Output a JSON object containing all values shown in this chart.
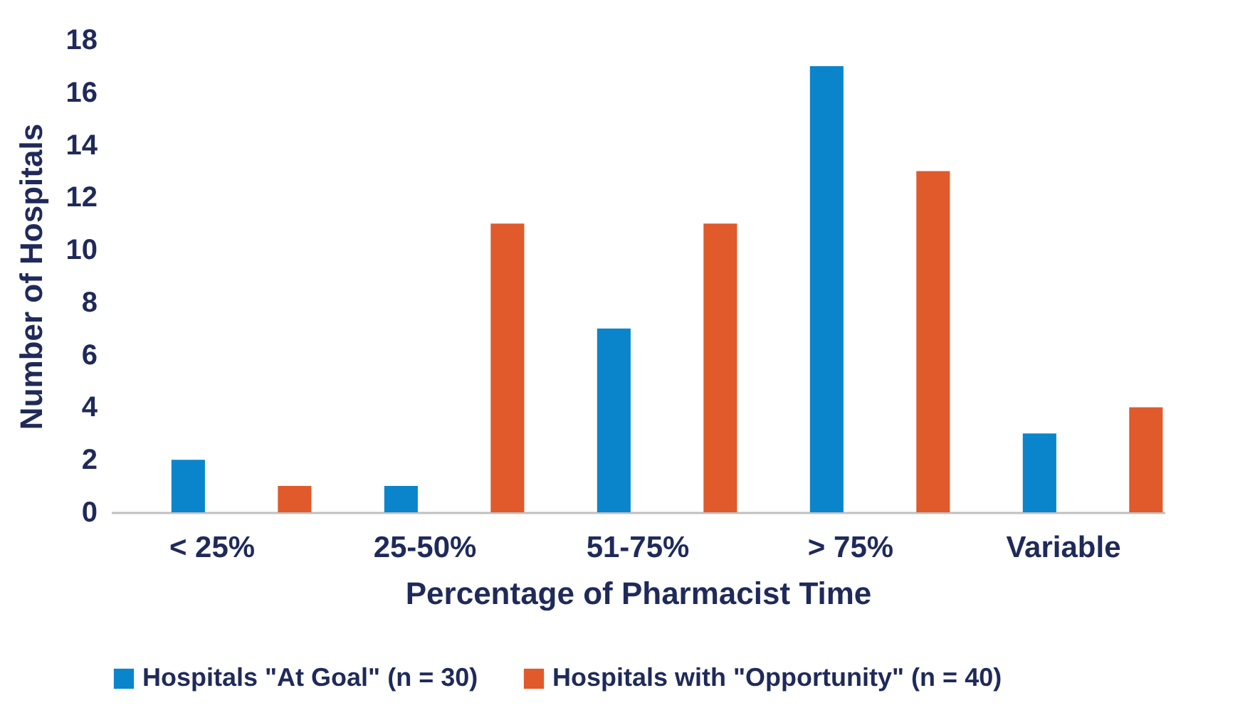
{
  "chart_data": {
    "type": "bar",
    "xlabel": "Percentage of Pharmacist Time",
    "ylabel": "Number of Hospitals",
    "categories": [
      "< 25%",
      "25-50%",
      "51-75%",
      "> 75%",
      "Variable"
    ],
    "series": [
      {
        "name": "Hospitals \"At Goal\" (n = 30)",
        "color": "#0a85cc",
        "values": [
          2,
          1,
          7,
          17,
          3
        ]
      },
      {
        "name": "Hospitals with \"Opportunity\" (n = 40)",
        "color": "#e05a2b",
        "values": [
          1,
          11,
          11,
          13,
          4
        ]
      }
    ],
    "ylim": [
      0,
      18
    ],
    "yticks": [
      0,
      2,
      4,
      6,
      8,
      10,
      12,
      14,
      16,
      18
    ],
    "grid": false,
    "legend": "bottom"
  }
}
